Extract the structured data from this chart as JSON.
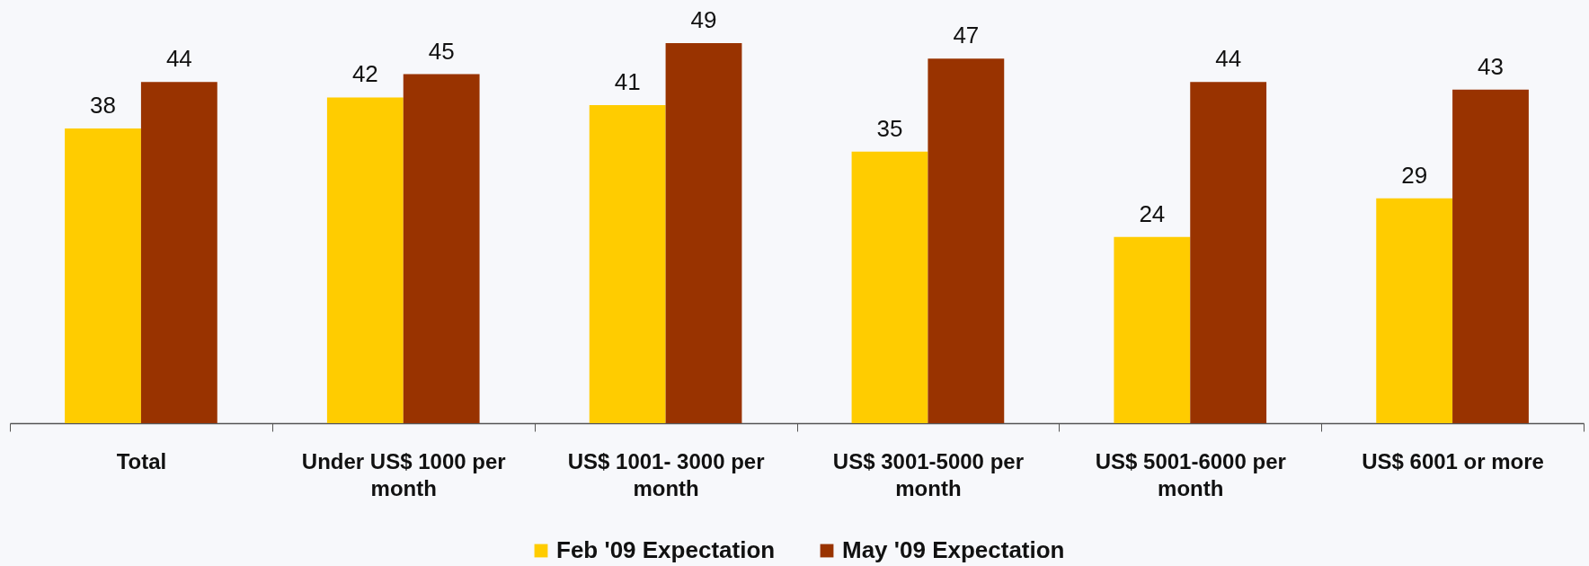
{
  "chart_data": {
    "type": "bar",
    "categories": [
      "Total",
      "Under US$ 1000 per month",
      "US$ 1001- 3000 per month",
      "US$ 3001-5000 per month",
      "US$ 5001-6000 per month",
      "US$ 6001 or more"
    ],
    "series": [
      {
        "name": "Feb '09 Expectation",
        "color": "#ffcc00",
        "values": [
          38,
          42,
          41,
          35,
          24,
          29
        ]
      },
      {
        "name": "May '09 Expectation",
        "color": "#993300",
        "values": [
          44,
          45,
          49,
          47,
          44,
          43
        ]
      }
    ],
    "tick_labels": "x",
    "data_labels": true,
    "legend": "bottom"
  }
}
